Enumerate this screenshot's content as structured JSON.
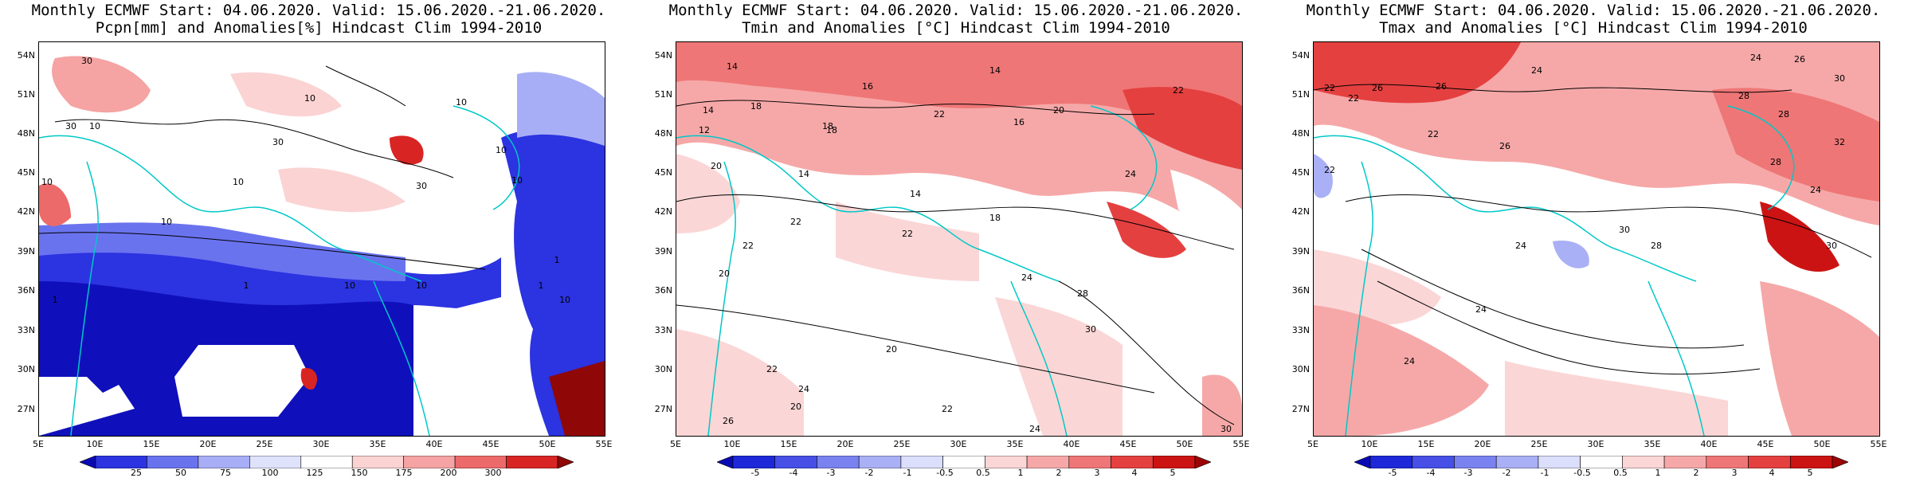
{
  "panels": [
    {
      "title_line1": "Monthly ECMWF Start: 04.06.2020. Valid: 15.06.2020.-21.06.2020.",
      "title_line2": "Pcpn[mm] and Anomalies[%] Hindcast Clim 1994-2010",
      "lat_labels": [
        "54N",
        "51N",
        "48N",
        "45N",
        "42N",
        "39N",
        "36N",
        "33N",
        "30N",
        "27N"
      ],
      "lon_labels": [
        "5E",
        "10E",
        "15E",
        "20E",
        "25E",
        "30E",
        "35E",
        "40E",
        "45E",
        "50E",
        "55E"
      ],
      "colorbar_labels": [
        "25",
        "50",
        "75",
        "100",
        "125",
        "150",
        "175",
        "200",
        "300"
      ],
      "colorbar_colors": [
        "#0a0ab4",
        "#2c33e0",
        "#6a73ee",
        "#a7aef6",
        "#dfe2fb",
        "#ffffff",
        "#fbd3d3",
        "#f5a3a3",
        "#ec6a6a",
        "#d92424",
        "#8f0707"
      ],
      "contour_labels": [
        "30",
        "10",
        "30",
        "10",
        "30",
        "10",
        "10",
        "10",
        "10",
        "30",
        "10",
        "10",
        "1",
        "10",
        "1",
        "1",
        "10",
        "10",
        "1"
      ]
    },
    {
      "title_line1": "Monthly ECMWF Start: 04.06.2020. Valid: 15.06.2020.-21.06.2020.",
      "title_line2": "Tmin and Anomalies [°C] Hindcast Clim 1994-2010",
      "lat_labels": [
        "54N",
        "51N",
        "48N",
        "45N",
        "42N",
        "39N",
        "36N",
        "33N",
        "30N",
        "27N"
      ],
      "lon_labels": [
        "5E",
        "10E",
        "15E",
        "20E",
        "25E",
        "30E",
        "35E",
        "40E",
        "45E",
        "50E",
        "55E"
      ],
      "colorbar_labels": [
        "-5",
        "-4",
        "-3",
        "-2",
        "-1",
        "-0.5",
        "0.5",
        "1",
        "2",
        "3",
        "4",
        "5"
      ],
      "colorbar_colors": [
        "#0a0ab4",
        "#1d28d8",
        "#4650e6",
        "#7a82ef",
        "#aab0f5",
        "#dcdffb",
        "#ffffff",
        "#fbd6d6",
        "#f6a8a8",
        "#ef7676",
        "#e44040",
        "#cc1313",
        "#9c0505"
      ],
      "contour_labels": [
        "14",
        "14",
        "16",
        "18",
        "14",
        "12",
        "18",
        "22",
        "20",
        "22",
        "14",
        "18",
        "16",
        "14",
        "20",
        "18",
        "22",
        "22",
        "24",
        "22",
        "20",
        "24",
        "28",
        "30",
        "20",
        "22",
        "24",
        "20",
        "22",
        "26",
        "24",
        "30"
      ]
    },
    {
      "title_line1": "Monthly ECMWF Start: 04.06.2020. Valid: 15.06.2020.-21.06.2020.",
      "title_line2": "Tmax and Anomalies [°C] Hindcast Clim 1994-2010",
      "lat_labels": [
        "54N",
        "51N",
        "48N",
        "45N",
        "42N",
        "39N",
        "36N",
        "33N",
        "30N",
        "27N"
      ],
      "lon_labels": [
        "5E",
        "10E",
        "15E",
        "20E",
        "25E",
        "30E",
        "35E",
        "40E",
        "45E",
        "50E",
        "55E"
      ],
      "colorbar_labels": [
        "-5",
        "-4",
        "-3",
        "-2",
        "-1",
        "-0.5",
        "0.5",
        "1",
        "2",
        "3",
        "4",
        "5"
      ],
      "colorbar_colors": [
        "#0a0ab4",
        "#1d28d8",
        "#4650e6",
        "#7a82ef",
        "#aab0f5",
        "#dcdffb",
        "#ffffff",
        "#fbd6d6",
        "#f6a8a8",
        "#ef7676",
        "#e44040",
        "#cc1313",
        "#9c0505"
      ],
      "contour_labels": [
        "24",
        "26",
        "22",
        "26",
        "28",
        "22",
        "26",
        "24",
        "28",
        "30",
        "22",
        "28",
        "26",
        "24",
        "22",
        "24",
        "28",
        "30",
        "32",
        "24",
        "30",
        "24"
      ]
    }
  ]
}
